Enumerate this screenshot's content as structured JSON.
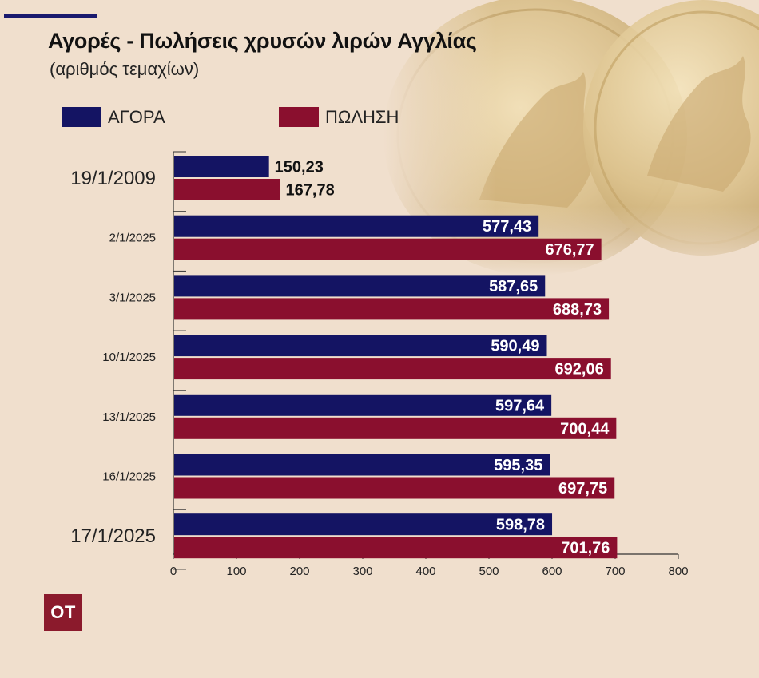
{
  "title": "Αγορές -  Πωλήσεις χρυσών λιρών Αγγλίας",
  "subtitle": "(αριθμός τεμαχίων)",
  "legend": [
    {
      "label": "ΑΓΟΡΑ",
      "color": "#141463"
    },
    {
      "label": "ΠΩΛΗΣΗ",
      "color": "#8a0f2e"
    }
  ],
  "logo": "OT",
  "chart_data": {
    "type": "bar",
    "orientation": "horizontal",
    "categories": [
      "19/1/2009",
      "2/1/2025",
      "3/1/2025",
      "10/1/2025",
      "13/1/2025",
      "16/1/2025",
      "17/1/2025"
    ],
    "series": [
      {
        "name": "ΑΓΟΡΑ",
        "color": "#141463",
        "values": [
          150.23,
          577.43,
          587.65,
          590.49,
          597.64,
          595.35,
          598.78
        ],
        "labels": [
          "150,23",
          "577,43",
          "587,65",
          "590,49",
          "597,64",
          "595,35",
          "598,78"
        ]
      },
      {
        "name": "ΠΩΛΗΣΗ",
        "color": "#8a0f2e",
        "values": [
          167.78,
          676.77,
          688.73,
          692.06,
          700.44,
          697.75,
          701.76
        ],
        "labels": [
          "167,78",
          "676,77",
          "688,73",
          "692,06",
          "700,44",
          "697,75",
          "701,76"
        ]
      }
    ],
    "xlim": [
      0,
      800
    ],
    "xticks": [
      "0",
      "100",
      "200",
      "300",
      "400",
      "500",
      "600",
      "700",
      "800"
    ],
    "grid": false,
    "legend_position": "top-left"
  }
}
